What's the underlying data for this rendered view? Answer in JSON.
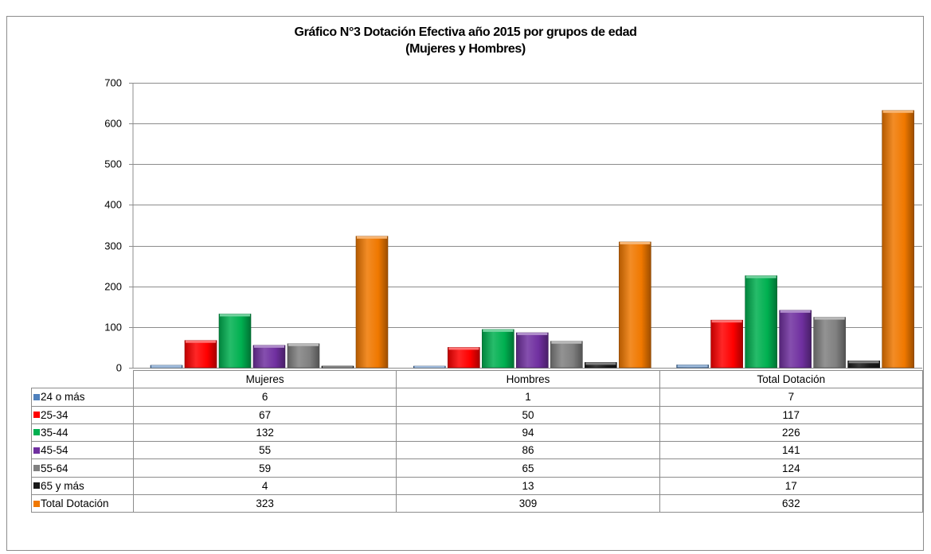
{
  "chart_data": {
    "type": "bar",
    "title": [
      "Gráfico N°3  Dotación Efectiva año 2015 por grupos de edad",
      "(Mujeres y Hombres)"
    ],
    "categories": [
      "Mujeres",
      "Hombres",
      "Total Dotación"
    ],
    "series": [
      {
        "name": "24 o más",
        "values": [
          6,
          1,
          7
        ],
        "color": "#4f81bd"
      },
      {
        "name": "25-34",
        "values": [
          67,
          50,
          117
        ],
        "color": "#ff0000"
      },
      {
        "name": "35-44",
        "values": [
          132,
          94,
          226
        ],
        "color": "#00b050"
      },
      {
        "name": "45-54",
        "values": [
          55,
          86,
          141
        ],
        "color": "#7030a0"
      },
      {
        "name": "55-64",
        "values": [
          59,
          65,
          124
        ],
        "color": "#808080"
      },
      {
        "name": "65 y más",
        "values": [
          4,
          13,
          17
        ],
        "color": "#1a1a1a"
      },
      {
        "name": "Total Dotación",
        "values": [
          323,
          309,
          632
        ],
        "color": "#f07800"
      }
    ],
    "ylim": [
      0,
      700
    ],
    "yticks": [
      0,
      100,
      200,
      300,
      400,
      500,
      600,
      700
    ],
    "grid": true,
    "legend": "data table below chart"
  }
}
